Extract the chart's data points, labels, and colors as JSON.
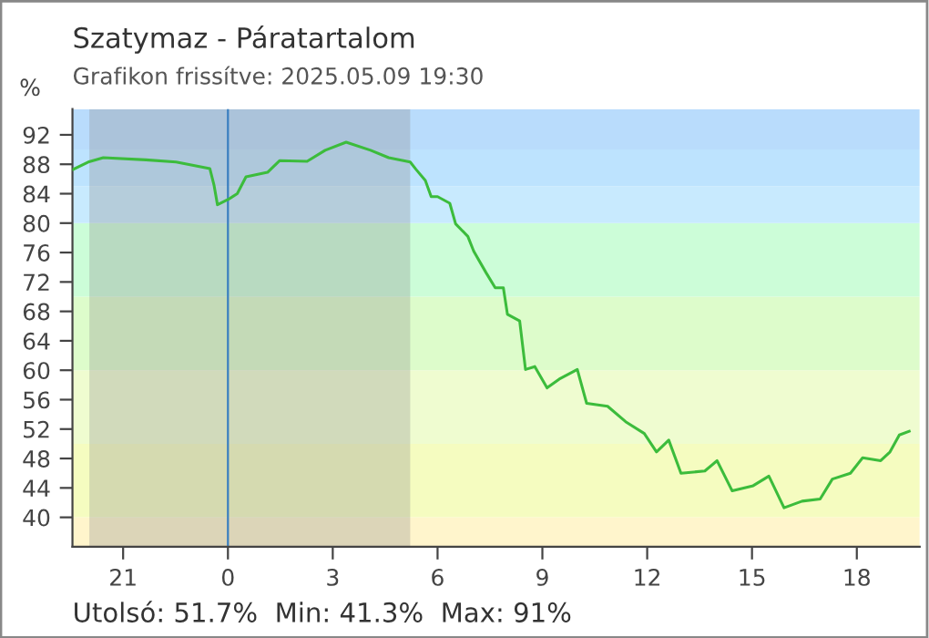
{
  "chart_data": {
    "type": "line",
    "title": "Szatymaz - Páratartalom",
    "subtitle": "Grafikon frissítve: 2025.05.09 19:30",
    "ylabel": "%",
    "annotations": [
      "Utolsó: 51.7%  Min: 41.3%  Max: 91%"
    ],
    "x": [
      "2025-05-08T19:34",
      "2025-05-08T20:00",
      "2025-05-08T20:26",
      "2025-05-08T21:39",
      "2025-05-08T22:31",
      "2025-05-08T23:29",
      "2025-05-08T23:36",
      "2025-05-08T23:42",
      "2025-05-09T00:00",
      "2025-05-09T00:16",
      "2025-05-09T00:31",
      "2025-05-09T01:08",
      "2025-05-09T01:29",
      "2025-05-09T02:16",
      "2025-05-09T02:47",
      "2025-05-09T03:23",
      "2025-05-09T04:05",
      "2025-05-09T04:36",
      "2025-05-09T05:13",
      "2025-05-09T05:23",
      "2025-05-09T05:39",
      "2025-05-09T05:49",
      "2025-05-09T06:00",
      "2025-05-09T06:21",
      "2025-05-09T06:31",
      "2025-05-09T06:52",
      "2025-05-09T07:02",
      "2025-05-09T07:23",
      "2025-05-09T07:39",
      "2025-05-09T07:53",
      "2025-05-09T08:00",
      "2025-05-09T08:21",
      "2025-05-09T08:31",
      "2025-05-09T08:47",
      "2025-05-09T09:08",
      "2025-05-09T09:29",
      "2025-05-09T10:00",
      "2025-05-09T10:16",
      "2025-05-09T10:52",
      "2025-05-09T11:23",
      "2025-05-09T11:55",
      "2025-05-09T12:16",
      "2025-05-09T12:37",
      "2025-05-09T12:58",
      "2025-05-09T13:39",
      "2025-05-09T14:00",
      "2025-05-09T14:26",
      "2025-05-09T15:02",
      "2025-05-09T15:29",
      "2025-05-09T15:55",
      "2025-05-09T16:26",
      "2025-05-09T16:57",
      "2025-05-09T17:18",
      "2025-05-09T17:49",
      "2025-05-09T18:10",
      "2025-05-09T18:41",
      "2025-05-09T18:57",
      "2025-05-09T19:13",
      "2025-05-09T19:30"
    ],
    "series": [
      {
        "color": "#3cbc3c",
        "values": [
          87.3,
          88.3,
          88.9,
          88.6,
          88.3,
          87.4,
          85.2,
          82.5,
          83.2,
          84.0,
          86.3,
          86.9,
          88.5,
          88.4,
          89.9,
          91,
          89.9,
          88.9,
          88.3,
          87.3,
          85.8,
          83.6,
          83.6,
          82.7,
          79.9,
          78.2,
          76.2,
          73.3,
          71.2,
          71.2,
          67.6,
          66.7,
          60.1,
          60.5,
          57.6,
          58.8,
          60.1,
          55.5,
          55.1,
          53.0,
          51.4,
          48.9,
          50.5,
          46.0,
          46.3,
          47.7,
          43.6,
          44.3,
          45.6,
          41.3,
          42.2,
          42.5,
          45.2,
          46.0,
          48.1,
          47.7,
          48.9,
          51.2,
          51.7
        ]
      }
    ],
    "xlim": [
      "2025-05-08T19:33",
      "2025-05-09T19:48"
    ],
    "ylim": [
      36,
      95.5
    ],
    "xticks": [
      {
        "value": "2025-05-08T21:00",
        "label": "21"
      },
      {
        "value": "2025-05-09T00:00",
        "label": "0"
      },
      {
        "value": "2025-05-09T03:00",
        "label": "3"
      },
      {
        "value": "2025-05-09T06:00",
        "label": "6"
      },
      {
        "value": "2025-05-09T09:00",
        "label": "9"
      },
      {
        "value": "2025-05-09T12:00",
        "label": "12"
      },
      {
        "value": "2025-05-09T15:00",
        "label": "15"
      },
      {
        "value": "2025-05-09T18:00",
        "label": "18"
      }
    ],
    "yticks": [
      40,
      44,
      48,
      52,
      56,
      60,
      64,
      68,
      72,
      76,
      80,
      84,
      88,
      92
    ],
    "bands": [
      {
        "axis": "y",
        "from": 36,
        "to": 40,
        "color": "#fff5cc"
      },
      {
        "axis": "y",
        "from": 40,
        "to": 50,
        "color": "#f5fcc0"
      },
      {
        "axis": "y",
        "from": 50,
        "to": 60,
        "color": "#effcd0"
      },
      {
        "axis": "y",
        "from": 60,
        "to": 70,
        "color": "#ddfccb"
      },
      {
        "axis": "y",
        "from": 70,
        "to": 80,
        "color": "#ccfdd8"
      },
      {
        "axis": "y",
        "from": 80,
        "to": 85,
        "color": "#c8eafe"
      },
      {
        "axis": "y",
        "from": 85,
        "to": 90,
        "color": "#bde3fe"
      },
      {
        "axis": "y",
        "from": 90,
        "to": 95.5,
        "color": "#b9dcfc"
      },
      {
        "axis": "x",
        "from": "2025-05-08T20:02",
        "to": "2025-05-09T05:13",
        "color": "#8a8a8a"
      }
    ],
    "ref_lines": [
      {
        "axis": "x",
        "value": "2025-05-09T00:00",
        "color": "#3a7fc0"
      }
    ],
    "grid": false,
    "legend": false,
    "marker": "none",
    "line_style": "solid"
  }
}
